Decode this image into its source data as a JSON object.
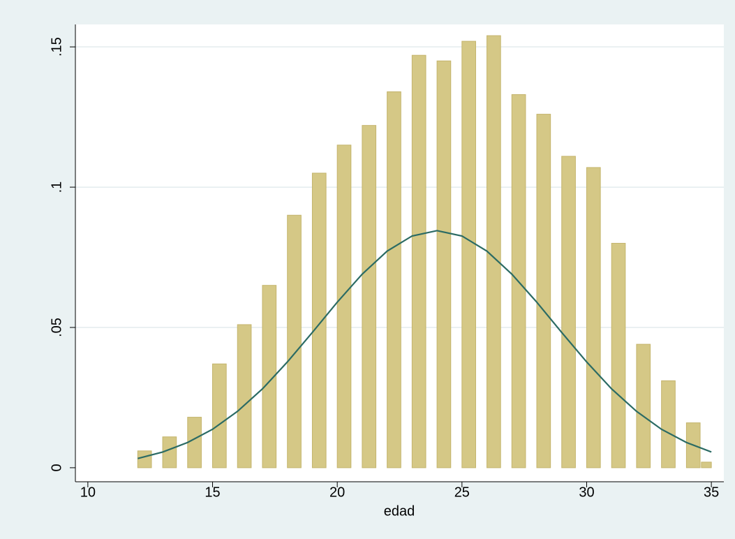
{
  "chart_data": {
    "type": "bar",
    "xlabel": "edad",
    "xlim": [
      9.5,
      35.5
    ],
    "ylim": [
      -0.005,
      0.158
    ],
    "xticks": [
      10,
      15,
      20,
      25,
      30,
      35
    ],
    "yticks": [
      0,
      {
        "value": 0.05,
        "label": ".05"
      },
      {
        "value": 0.1,
        "label": ".1"
      },
      {
        "value": 0.15,
        "label": ".15"
      }
    ],
    "grid": true,
    "series": [
      {
        "type": "bar",
        "color": "#d5c886",
        "x": [
          12,
          13,
          14,
          15,
          16,
          17,
          18,
          19,
          20,
          21,
          22,
          23,
          24,
          25,
          26,
          27,
          28,
          29,
          30,
          31,
          32,
          33,
          34,
          34.6
        ],
        "values": [
          0.006,
          0.011,
          0.018,
          0.037,
          0.051,
          0.065,
          0.09,
          0.105,
          0.115,
          0.122,
          0.134,
          0.147,
          0.145,
          0.152,
          0.154,
          0.133,
          0.126,
          0.111,
          0.107,
          0.08,
          0.044,
          0.031,
          0.016,
          0.002
        ]
      },
      {
        "type": "line",
        "color": "#2b6b64",
        "x": [
          12,
          13,
          14,
          15,
          16,
          17,
          18,
          19,
          20,
          21,
          22,
          23,
          24,
          25,
          26,
          27,
          28,
          29,
          30,
          31,
          32,
          33,
          34,
          35
        ],
        "values": [
          0.0033,
          0.0056,
          0.009,
          0.0137,
          0.0201,
          0.0281,
          0.0377,
          0.0482,
          0.059,
          0.069,
          0.0772,
          0.0826,
          0.0845,
          0.0826,
          0.0772,
          0.069,
          0.059,
          0.0482,
          0.0377,
          0.0281,
          0.0201,
          0.0137,
          0.009,
          0.0056
        ]
      }
    ]
  }
}
